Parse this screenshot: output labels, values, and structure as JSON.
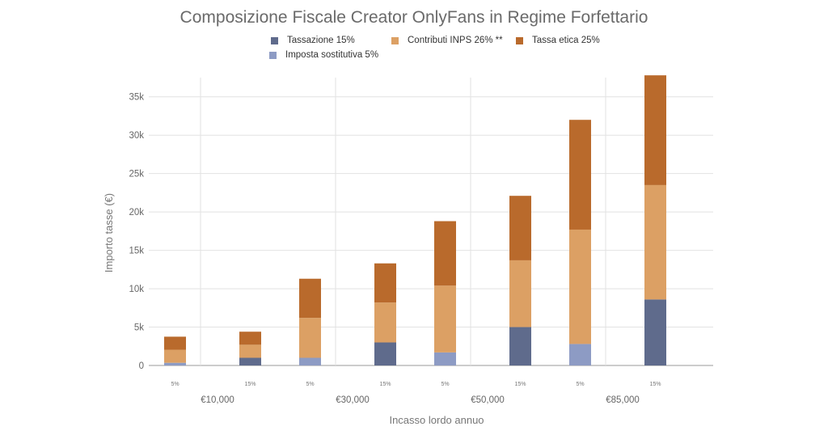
{
  "chart_data": {
    "type": "bar",
    "stacked": true,
    "title": "Composizione Fiscale Creator OnlyFans in Regime Forfettario",
    "xlabel": "Incasso lordo annuo",
    "ylabel": "Importo tasse (€)",
    "ylim": [
      0,
      37500
    ],
    "yticks": [
      0,
      5000,
      10000,
      15000,
      20000,
      25000,
      30000,
      35000
    ],
    "ytick_labels": [
      "0",
      "5k",
      "10k",
      "15k",
      "20k",
      "25k",
      "30k",
      "35k"
    ],
    "grid": true,
    "legend_position": "top",
    "groups": [
      {
        "label": "€10,000",
        "bar_labels": [
          "5%",
          "15%"
        ]
      },
      {
        "label": "€30,000",
        "bar_labels": [
          "5%",
          "15%"
        ]
      },
      {
        "label": "€50,000",
        "bar_labels": [
          "5%",
          "15%"
        ]
      },
      {
        "label": "€85,000",
        "bar_labels": [
          "5%",
          "15%"
        ]
      }
    ],
    "series": [
      {
        "name": "Tassazione 15%",
        "color": "#5f6b8c",
        "values": [
          0,
          1000,
          0,
          3000,
          0,
          5000,
          0,
          8600
        ]
      },
      {
        "name": "Imposta sostitutiva 5%",
        "color": "#8d9bc4",
        "values": [
          350,
          0,
          1000,
          0,
          1700,
          0,
          2800,
          0
        ]
      },
      {
        "name": "Contributi INPS 26% **",
        "color": "#dca064",
        "values": [
          1700,
          1700,
          5200,
          5200,
          8700,
          8700,
          14900,
          14900
        ]
      },
      {
        "name": "Tassa etica 25%",
        "color": "#b96a2c",
        "values": [
          1700,
          1700,
          5100,
          5100,
          8400,
          8400,
          14300,
          14300
        ]
      }
    ]
  }
}
